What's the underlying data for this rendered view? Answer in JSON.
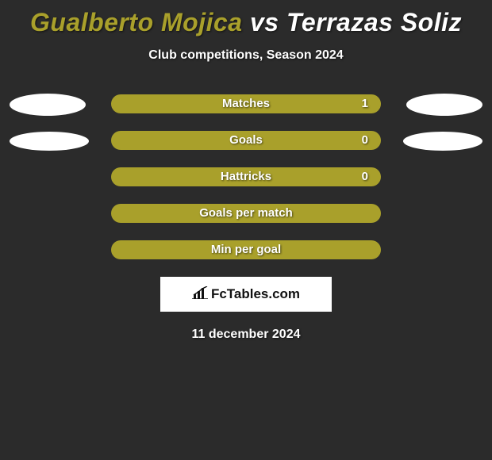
{
  "title_left": "Gualberto Mojica",
  "title_vs": "vs",
  "title_right": "Terrazas Soliz",
  "subtitle": "Club competitions, Season 2024",
  "colors": {
    "background": "#2b2b2b",
    "title_left": "#a9a02b",
    "title_vs": "#ffffff",
    "title_right": "#ffffff",
    "bar_left": "#a9a02b",
    "bar_right": "#a9a02b",
    "ellipse_fill": "#ffffff",
    "brand_bg": "#ffffff",
    "brand_text": "#111111"
  },
  "ellipse": {
    "width": 96,
    "height": 28
  },
  "bars": [
    {
      "label": "Matches",
      "left_width": 170,
      "right_width": 170,
      "left_value": "",
      "right_value": "1",
      "show_left_ellipse": true,
      "show_right_ellipse": true,
      "ellipse_w": 96,
      "ellipse_h": 28
    },
    {
      "label": "Goals",
      "left_width": 170,
      "right_width": 170,
      "left_value": "",
      "right_value": "0",
      "show_left_ellipse": true,
      "show_right_ellipse": true,
      "ellipse_w": 100,
      "ellipse_h": 24
    },
    {
      "label": "Hattricks",
      "left_width": 170,
      "right_width": 170,
      "left_value": "",
      "right_value": "0",
      "show_left_ellipse": false,
      "show_right_ellipse": false,
      "ellipse_w": 0,
      "ellipse_h": 0
    },
    {
      "label": "Goals per match",
      "left_width": 170,
      "right_width": 170,
      "left_value": "",
      "right_value": "",
      "show_left_ellipse": false,
      "show_right_ellipse": false,
      "ellipse_w": 0,
      "ellipse_h": 0
    },
    {
      "label": "Min per goal",
      "left_width": 170,
      "right_width": 170,
      "left_value": "",
      "right_value": "",
      "show_left_ellipse": false,
      "show_right_ellipse": false,
      "ellipse_w": 0,
      "ellipse_h": 0
    }
  ],
  "brand": "FcTables.com",
  "date": "11 december 2024"
}
